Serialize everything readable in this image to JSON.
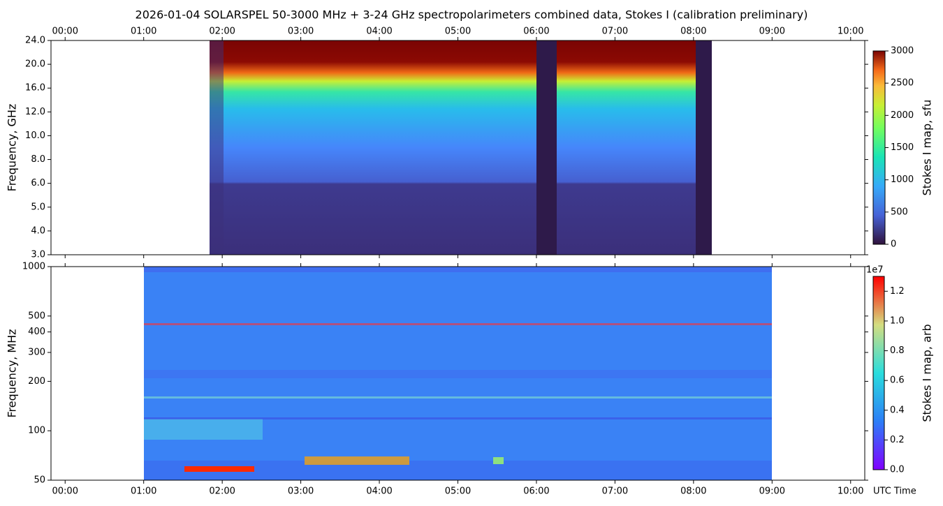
{
  "chart_data": [
    {
      "type": "heatmap",
      "title": "2026-01-04  SOLARSPEL  50-3000 MHz  +  3-24 GHz  spectropolarimeters combined data,  Stokes I  (calibration preliminary)",
      "ylabel": "Frequency, GHz",
      "xlim": [
        -0.18,
        10.18
      ],
      "xticks": [
        {
          "value": 0,
          "label": "00:00"
        },
        {
          "value": 1,
          "label": "01:00"
        },
        {
          "value": 2,
          "label": "02:00"
        },
        {
          "value": 3,
          "label": "03:00"
        },
        {
          "value": 4,
          "label": "04:00"
        },
        {
          "value": 5,
          "label": "05:00"
        },
        {
          "value": 6,
          "label": "06:00"
        },
        {
          "value": 7,
          "label": "07:00"
        },
        {
          "value": 8,
          "label": "08:00"
        },
        {
          "value": 9,
          "label": "09:00"
        },
        {
          "value": 10,
          "label": "10:00"
        }
      ],
      "ylim": [
        3,
        24
      ],
      "yticks": [
        {
          "value": 3,
          "label": "3.0"
        },
        {
          "value": 4,
          "label": "4.0"
        },
        {
          "value": 5,
          "label": "5.0"
        },
        {
          "value": 6,
          "label": "6.0"
        },
        {
          "value": 8,
          "label": "8.0"
        },
        {
          "value": 10,
          "label": "10.0"
        },
        {
          "value": 12,
          "label": "12.0"
        },
        {
          "value": 16,
          "label": "16.0"
        },
        {
          "value": 20,
          "label": "20.0"
        },
        {
          "value": 24,
          "label": "24.0"
        }
      ],
      "colormap": "turbo",
      "colorbar": {
        "label": "Stokes I map, sfu",
        "lim": [
          0,
          3000
        ],
        "ticks": [
          0,
          500,
          1000,
          1500,
          2000,
          2500,
          3000
        ]
      }
    },
    {
      "type": "heatmap",
      "ylabel": "Frequency, MHz",
      "xlabel": "UTC Time",
      "xlim": [
        -0.18,
        10.18
      ],
      "xticks": [
        {
          "value": 0,
          "label": "00:00"
        },
        {
          "value": 1,
          "label": "01:00"
        },
        {
          "value": 2,
          "label": "02:00"
        },
        {
          "value": 3,
          "label": "03:00"
        },
        {
          "value": 4,
          "label": "04:00"
        },
        {
          "value": 5,
          "label": "05:00"
        },
        {
          "value": 6,
          "label": "06:00"
        },
        {
          "value": 7,
          "label": "07:00"
        },
        {
          "value": 8,
          "label": "08:00"
        },
        {
          "value": 9,
          "label": "09:00"
        },
        {
          "value": 10,
          "label": "10:00"
        }
      ],
      "ylim": [
        50,
        1000
      ],
      "ylog": true,
      "yticks": [
        50,
        100,
        200,
        300,
        400,
        500,
        1000
      ],
      "colormap": "rainbow",
      "colorbar": {
        "label": "Stokes I map, arb",
        "lim": [
          0,
          1.3
        ],
        "offset_label": "1e7",
        "ticks": [
          {
            "value": 0,
            "label": "0.0"
          },
          {
            "value": 0.2,
            "label": "0.2"
          },
          {
            "value": 0.4,
            "label": "0.4"
          },
          {
            "value": 0.6,
            "label": "0.6"
          },
          {
            "value": 0.8,
            "label": "0.8"
          },
          {
            "value": 1.0,
            "label": "1.0"
          },
          {
            "value": 1.2,
            "label": "1.2"
          }
        ]
      }
    }
  ]
}
